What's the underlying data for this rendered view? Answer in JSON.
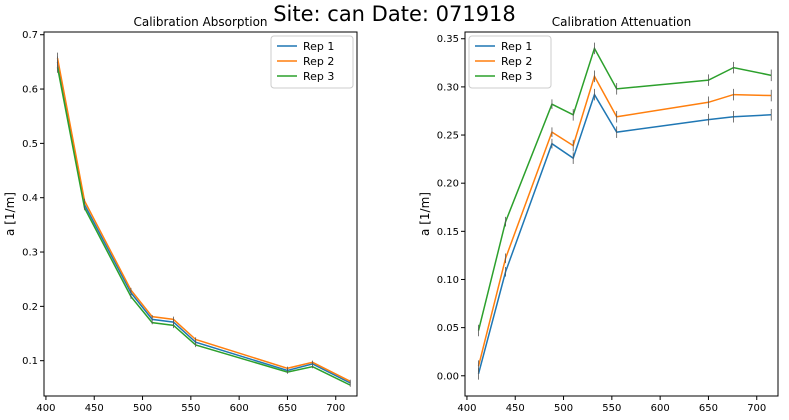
{
  "suptitle": "Site: can Date: 071918",
  "chart_data": [
    {
      "type": "line",
      "title": "Calibration Absorption",
      "xlabel": "",
      "ylabel": "a [1/m]",
      "xlim": [
        398,
        722
      ],
      "ylim": [
        0.035,
        0.705
      ],
      "xticks": [
        400,
        450,
        500,
        550,
        600,
        650,
        700
      ],
      "yticks": [
        0.1,
        0.2,
        0.3,
        0.4,
        0.5,
        0.6,
        0.7
      ],
      "ytick_labels": [
        "0.1",
        "0.2",
        "0.3",
        "0.4",
        "0.5",
        "0.6",
        "0.7"
      ],
      "legend": "top-right",
      "x": [
        412,
        440,
        488,
        510,
        532,
        555,
        650,
        676,
        715
      ],
      "series": [
        {
          "name": "Rep 1",
          "color": "#1f77b4",
          "values": [
            0.65,
            0.387,
            0.225,
            0.176,
            0.171,
            0.134,
            0.082,
            0.094,
            0.059
          ],
          "err": [
            0.01,
            0.004,
            0.004,
            0.003,
            0.005,
            0.004,
            0.003,
            0.003,
            0.003
          ]
        },
        {
          "name": "Rep 2",
          "color": "#ff7f0e",
          "values": [
            0.657,
            0.394,
            0.23,
            0.181,
            0.176,
            0.139,
            0.086,
            0.097,
            0.062
          ],
          "err": [
            0.01,
            0.004,
            0.004,
            0.003,
            0.005,
            0.004,
            0.003,
            0.003,
            0.003
          ]
        },
        {
          "name": "Rep 3",
          "color": "#2ca02c",
          "values": [
            0.64,
            0.381,
            0.218,
            0.17,
            0.165,
            0.129,
            0.079,
            0.089,
            0.055
          ],
          "err": [
            0.01,
            0.004,
            0.004,
            0.003,
            0.005,
            0.004,
            0.003,
            0.003,
            0.003
          ]
        }
      ]
    },
    {
      "type": "line",
      "title": "Calibration Attenuation",
      "xlabel": "",
      "ylabel": "a [1/m]",
      "xlim": [
        398,
        722
      ],
      "ylim": [
        -0.021,
        0.357
      ],
      "xticks": [
        400,
        450,
        500,
        550,
        600,
        650,
        700
      ],
      "yticks": [
        0.0,
        0.05,
        0.1,
        0.15,
        0.2,
        0.25,
        0.3,
        0.35
      ],
      "ytick_labels": [
        "0.00",
        "0.05",
        "0.10",
        "0.15",
        "0.20",
        "0.25",
        "0.30",
        "0.35"
      ],
      "legend": "top-left",
      "x": [
        412,
        440,
        488,
        510,
        532,
        555,
        650,
        676,
        715
      ],
      "series": [
        {
          "name": "Rep 1",
          "color": "#1f77b4",
          "values": [
            0.002,
            0.108,
            0.241,
            0.226,
            0.292,
            0.253,
            0.266,
            0.269,
            0.271
          ],
          "err": [
            0.006,
            0.005,
            0.005,
            0.006,
            0.006,
            0.006,
            0.006,
            0.006,
            0.006
          ]
        },
        {
          "name": "Rep 2",
          "color": "#ff7f0e",
          "values": [
            0.01,
            0.122,
            0.253,
            0.239,
            0.311,
            0.269,
            0.284,
            0.292,
            0.291
          ],
          "err": [
            0.006,
            0.005,
            0.005,
            0.006,
            0.006,
            0.006,
            0.006,
            0.006,
            0.006
          ]
        },
        {
          "name": "Rep 3",
          "color": "#2ca02c",
          "values": [
            0.047,
            0.16,
            0.282,
            0.271,
            0.34,
            0.298,
            0.307,
            0.32,
            0.312
          ],
          "err": [
            0.006,
            0.005,
            0.005,
            0.006,
            0.006,
            0.006,
            0.006,
            0.006,
            0.006
          ]
        }
      ]
    }
  ]
}
